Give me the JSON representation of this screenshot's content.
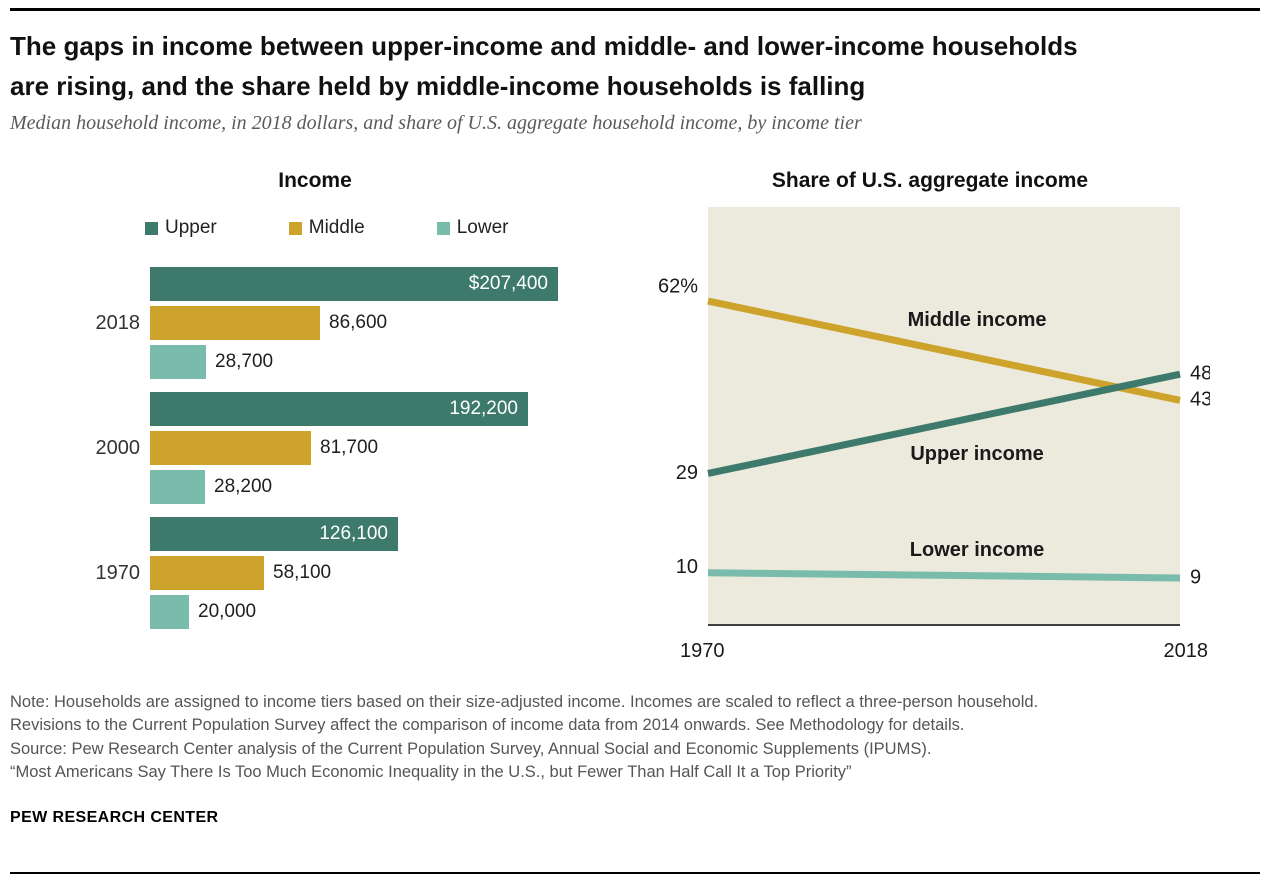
{
  "header": {
    "title": "The gaps in income between upper-income and middle- and lower-income households are rising, and the share held by middle-income households is falling",
    "subtitle": "Median household income, in 2018 dollars, and share of U.S. aggregate household income, by income tier"
  },
  "colors": {
    "upper": "#3d7a6c",
    "middle": "#cda32b",
    "lower": "#79bcab",
    "plot_bg": "#ece9dd",
    "axis": "#404040"
  },
  "chart_data": [
    {
      "type": "bar",
      "title": "Income",
      "orientation": "horizontal",
      "legend": [
        "Upper",
        "Middle",
        "Lower"
      ],
      "categories": [
        "2018",
        "2000",
        "1970"
      ],
      "xmax": 207400,
      "series": [
        {
          "name": "Upper",
          "color_key": "upper",
          "label_inside": true,
          "values": [
            207400,
            192200,
            126100
          ],
          "labels": [
            "$207,400",
            "192,200",
            "126,100"
          ]
        },
        {
          "name": "Middle",
          "color_key": "middle",
          "label_inside": false,
          "values": [
            86600,
            81700,
            58100
          ],
          "labels": [
            "86,600",
            "81,700",
            "58,100"
          ]
        },
        {
          "name": "Lower",
          "color_key": "lower",
          "label_inside": false,
          "values": [
            28700,
            28200,
            20000
          ],
          "labels": [
            "28,700",
            "28,200",
            "20,000"
          ]
        }
      ]
    },
    {
      "type": "line",
      "title": "Share of U.S. aggregate income",
      "x": [
        1970,
        2018
      ],
      "x_tick_labels": [
        "1970",
        "2018"
      ],
      "ylim": [
        0,
        80
      ],
      "grid": false,
      "legend_position": "in-chart",
      "series": [
        {
          "name": "Middle income",
          "color_key": "middle",
          "values": [
            62,
            43
          ],
          "start_label": "62%",
          "end_label": "43"
        },
        {
          "name": "Upper income",
          "color_key": "upper",
          "values": [
            29,
            48
          ],
          "start_label": "29",
          "end_label": "48"
        },
        {
          "name": "Lower income",
          "color_key": "lower",
          "values": [
            10,
            9
          ],
          "start_label": "10",
          "end_label": "9"
        }
      ]
    }
  ],
  "notes": {
    "lines": [
      "Note: Households are assigned to income tiers based on their size-adjusted income. Incomes are scaled to reflect a three-person household.",
      "Revisions to the Current Population Survey affect the comparison of income data from 2014 onwards. See Methodology for details.",
      "Source: Pew Research Center analysis of the Current Population Survey, Annual Social and Economic Supplements (IPUMS).",
      "“Most Americans Say There Is Too Much Economic Inequality in the U.S., but Fewer Than Half Call It a Top Priority”"
    ]
  },
  "footer": {
    "brand": "PEW RESEARCH CENTER"
  }
}
